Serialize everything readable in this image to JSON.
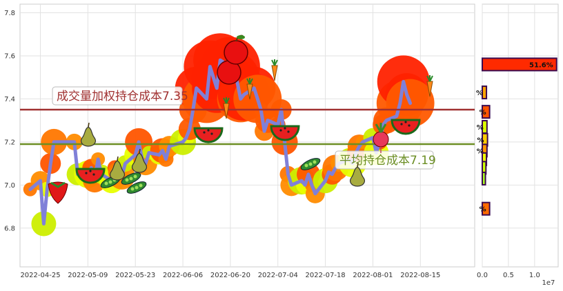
{
  "chart_data": [
    {
      "type": "line",
      "title": "",
      "xlabel": "",
      "ylabel": "",
      "x_ticks": [
        "2022-04-25",
        "2022-05-09",
        "2022-05-23",
        "2022-06-06",
        "2022-06-20",
        "2022-07-04",
        "2022-07-18",
        "2022-08-01",
        "2022-08-15"
      ],
      "y_ticks": [
        "6.8",
        "7.0",
        "7.2",
        "7.4",
        "7.6",
        "7.8"
      ],
      "xlim": [
        "2022-04-19",
        "2022-08-31"
      ],
      "ylim": [
        6.62,
        7.84
      ],
      "grid": true,
      "series": [
        {
          "color": "#8080d8",
          "points": [
            [
              "2022-04-22",
              6.98
            ],
            [
              "2022-04-25",
              7.02
            ],
            [
              "2022-04-26",
              6.82
            ],
            [
              "2022-04-27",
              6.98
            ],
            [
              "2022-04-28",
              7.1
            ],
            [
              "2022-04-29",
              7.2
            ],
            [
              "2022-05-05",
              7.2
            ],
            [
              "2022-05-06",
              7.05
            ],
            [
              "2022-05-09",
              7.05
            ],
            [
              "2022-05-10",
              7.08
            ],
            [
              "2022-05-11",
              7.02
            ],
            [
              "2022-05-12",
              7.12
            ],
            [
              "2022-05-13",
              7.05
            ],
            [
              "2022-05-16",
              7.02
            ],
            [
              "2022-05-17",
              7.08
            ],
            [
              "2022-05-18",
              7.06
            ],
            [
              "2022-05-19",
              7.04
            ],
            [
              "2022-05-20",
              7.1
            ],
            [
              "2022-05-23",
              7.14
            ],
            [
              "2022-05-24",
              7.2
            ],
            [
              "2022-05-25",
              7.12
            ],
            [
              "2022-05-26",
              7.1
            ],
            [
              "2022-05-27",
              7.15
            ],
            [
              "2022-05-30",
              7.14
            ],
            [
              "2022-05-31",
              7.16
            ],
            [
              "2022-06-01",
              7.12
            ],
            [
              "2022-06-02",
              7.18
            ],
            [
              "2022-06-06",
              7.2
            ],
            [
              "2022-06-07",
              7.22
            ],
            [
              "2022-06-08",
              7.26
            ],
            [
              "2022-06-09",
              7.35
            ],
            [
              "2022-06-10",
              7.45
            ],
            [
              "2022-06-13",
              7.4
            ],
            [
              "2022-06-14",
              7.55
            ],
            [
              "2022-06-15",
              7.5
            ],
            [
              "2022-06-16",
              7.45
            ],
            [
              "2022-06-17",
              7.58
            ],
            [
              "2022-06-20",
              7.55
            ],
            [
              "2022-06-21",
              7.5
            ],
            [
              "2022-06-22",
              7.48
            ],
            [
              "2022-06-23",
              7.4
            ],
            [
              "2022-06-24",
              7.42
            ],
            [
              "2022-06-27",
              7.45
            ],
            [
              "2022-06-28",
              7.4
            ],
            [
              "2022-06-29",
              7.35
            ],
            [
              "2022-06-30",
              7.25
            ],
            [
              "2022-07-01",
              7.3
            ],
            [
              "2022-07-04",
              7.28
            ],
            [
              "2022-07-05",
              7.35
            ],
            [
              "2022-07-06",
              7.2
            ],
            [
              "2022-07-07",
              7.05
            ],
            [
              "2022-07-08",
              7.0
            ],
            [
              "2022-07-11",
              7.02
            ],
            [
              "2022-07-12",
              7.0
            ],
            [
              "2022-07-13",
              7.05
            ],
            [
              "2022-07-14",
              7.0
            ],
            [
              "2022-07-15",
              6.96
            ],
            [
              "2022-07-18",
              7.02
            ],
            [
              "2022-07-19",
              7.06
            ],
            [
              "2022-07-20",
              7.05
            ],
            [
              "2022-07-21",
              7.08
            ],
            [
              "2022-07-22",
              7.1
            ],
            [
              "2022-07-25",
              7.12
            ],
            [
              "2022-07-26",
              7.1
            ],
            [
              "2022-07-27",
              7.15
            ],
            [
              "2022-07-28",
              7.18
            ],
            [
              "2022-07-29",
              7.2
            ],
            [
              "2022-08-01",
              7.22
            ],
            [
              "2022-08-02",
              7.15
            ],
            [
              "2022-08-03",
              7.2
            ],
            [
              "2022-08-04",
              7.28
            ],
            [
              "2022-08-05",
              7.3
            ],
            [
              "2022-08-08",
              7.32
            ],
            [
              "2022-08-09",
              7.38
            ],
            [
              "2022-08-10",
              7.48
            ],
            [
              "2022-08-11",
              7.42
            ],
            [
              "2022-08-12",
              7.38
            ]
          ]
        }
      ],
      "reference_lines": [
        {
          "label": "成交量加权持仓成本7.35",
          "value": 7.35,
          "color": "#a03030"
        },
        {
          "label": "平均持仓成本7.19",
          "value": 7.19,
          "color": "#6b8e23"
        }
      ]
    },
    {
      "type": "bar",
      "orientation": "horizontal",
      "x_ticks": [
        "0.0",
        "0.5",
        "1.0"
      ],
      "x_multiplier": "1e7",
      "xlim": [
        0,
        1.45
      ],
      "ylim": [
        6.62,
        7.84
      ],
      "grid": true,
      "bars": [
        {
          "y": 7.56,
          "value": 1.42,
          "label": "51.6%",
          "color": "#ff2a00"
        },
        {
          "y": 7.43,
          "value": 0.08,
          "label": "%",
          "color": "#ffa500"
        },
        {
          "y": 7.34,
          "value": 0.14,
          "label": "%",
          "color": "#ff5500"
        },
        {
          "y": 7.27,
          "value": 0.09,
          "label": "%",
          "color": "#ddff00"
        },
        {
          "y": 7.21,
          "value": 0.1,
          "label": "%",
          "color": "#ffcc00"
        },
        {
          "y": 7.16,
          "value": 0.09,
          "label": "%",
          "color": "#ff9900"
        },
        {
          "y": 7.12,
          "value": 0.08,
          "label": "",
          "color": "#eeff00"
        },
        {
          "y": 7.08,
          "value": 0.07,
          "label": "",
          "color": "#ccff00"
        },
        {
          "y": 7.03,
          "value": 0.06,
          "label": "",
          "color": "#aaff22"
        },
        {
          "y": 6.89,
          "value": 0.14,
          "label": "%",
          "color": "#ff6a00"
        }
      ]
    }
  ]
}
